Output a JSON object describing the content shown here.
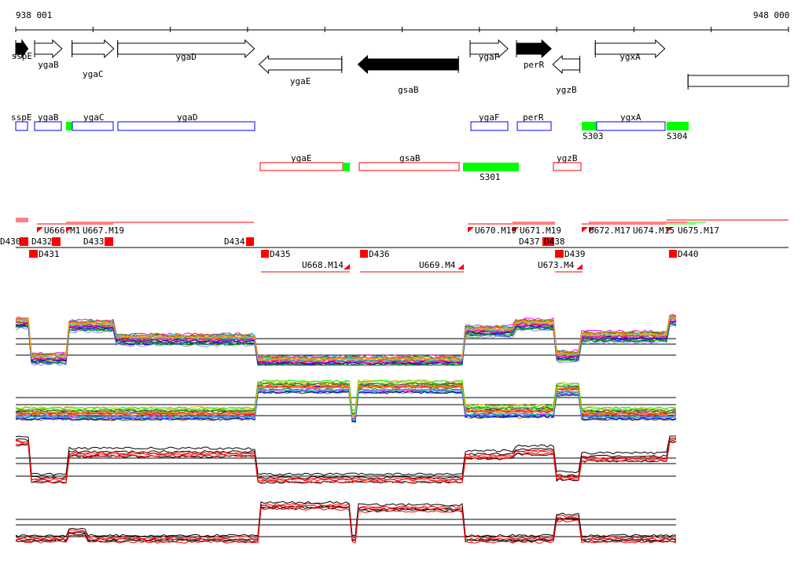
{
  "ruler": {
    "start_label": "938 001",
    "end_label": "948 000",
    "start": 938001,
    "end": 948000
  },
  "genes": [
    {
      "name": "sspE",
      "start": 938001,
      "end": 938160,
      "strand": "+",
      "filled": true
    },
    {
      "name": "ygaB",
      "start": 938245,
      "end": 938600,
      "strand": "+",
      "filled": false
    },
    {
      "name": "ygaC",
      "start": 938730,
      "end": 939270,
      "strand": "+",
      "filled": false
    },
    {
      "name": "ygaD",
      "start": 939320,
      "end": 941090,
      "strand": "+",
      "filled": false
    },
    {
      "name": "ygaE",
      "start": 941150,
      "end": 942220,
      "strand": "-",
      "filled": false
    },
    {
      "name": "gsaB",
      "start": 942430,
      "end": 943730,
      "strand": "-",
      "filled": true
    },
    {
      "name": "ygaF",
      "start": 943880,
      "end": 944370,
      "strand": "+",
      "filled": false
    },
    {
      "name": "perR",
      "start": 944480,
      "end": 944930,
      "strand": "+",
      "filled": true
    },
    {
      "name": "ygzB",
      "start": 944950,
      "end": 945300,
      "strand": "-",
      "filled": false
    },
    {
      "name": "ygxA",
      "start": 945500,
      "end": 946400,
      "strand": "+",
      "filled": false
    },
    {
      "name": "",
      "start": 946700,
      "end": 948000,
      "strand": "box",
      "filled": false
    }
  ],
  "plus_segments": [
    {
      "label": "sspE",
      "type": "gene"
    },
    {
      "label": "ygaB",
      "type": "gene"
    },
    {
      "label": "",
      "type": "segment"
    },
    {
      "label": "ygaC",
      "type": "gene"
    },
    {
      "label": "ygaD",
      "type": "gene"
    },
    {
      "label": "ygaF",
      "type": "gene"
    },
    {
      "label": "perR",
      "type": "gene"
    },
    {
      "label": "S303",
      "type": "segment"
    },
    {
      "label": "ygxA",
      "type": "gene"
    },
    {
      "label": "S304",
      "type": "segment"
    }
  ],
  "minus_segments": [
    {
      "label": "ygaE",
      "type": "gene"
    },
    {
      "label": "",
      "type": "segment"
    },
    {
      "label": "gsaB",
      "type": "gene"
    },
    {
      "label": "S301",
      "type": "segment"
    },
    {
      "label": "ygzB",
      "type": "gene"
    }
  ],
  "features_up": [
    "D430",
    "U666.M1",
    "U667.M19",
    "D432",
    "D433",
    "D434",
    "U670.M19",
    "U671.M19",
    "D437",
    "D438",
    "U672.M17",
    "U674.M15",
    "U675.M17"
  ],
  "features_down": [
    "D431",
    "D435",
    "U668.M14",
    "D436",
    "U669.M4",
    "D439",
    "U673.M4",
    "D440"
  ],
  "colors": {
    "plus": "#0000ff",
    "minus": "#ff0000",
    "segment": "#00ff00",
    "feature": "#ff0000"
  }
}
